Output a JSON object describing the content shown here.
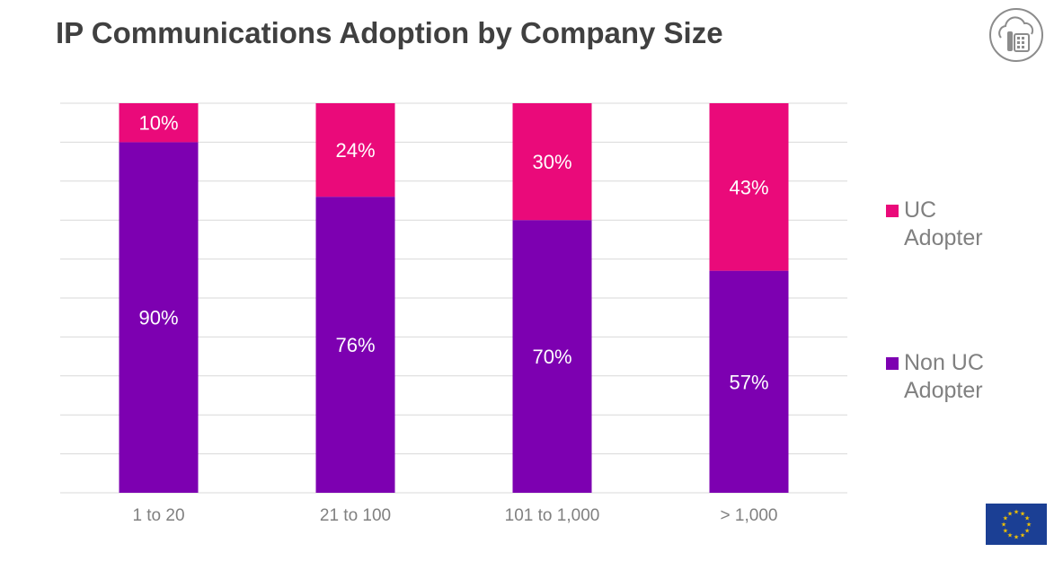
{
  "header": {
    "title": "IP Communications Adoption by Company Size"
  },
  "colors": {
    "uc": "#EA0A7A",
    "non_uc": "#7D00B1",
    "grid": "#D9D9D9",
    "axis_text": "#808080",
    "eu_blue": "#1B3F94",
    "eu_star": "#F2C200"
  },
  "legend": {
    "uc_label": "UC Adopter",
    "non_uc_label": "Non UC Adopter"
  },
  "icons": {
    "top_logo": "cloud-telephone-icon",
    "bottom_logo": "eu-flag-icon"
  },
  "chart_data": {
    "type": "bar",
    "stacked": true,
    "categories": [
      "1 to 20",
      "21 to 100",
      "101 to 1,000",
      "> 1,000"
    ],
    "series": [
      {
        "name": "Non UC Adopter",
        "values": [
          90,
          76,
          70,
          57
        ],
        "labels": [
          "90%",
          "76%",
          "70%",
          "57%"
        ]
      },
      {
        "name": "UC Adopter",
        "values": [
          10,
          24,
          30,
          43
        ],
        "labels": [
          "10%",
          "24%",
          "30%",
          "43%"
        ]
      }
    ],
    "ylim": [
      0,
      100
    ],
    "grid": true,
    "legend_position": "right"
  }
}
